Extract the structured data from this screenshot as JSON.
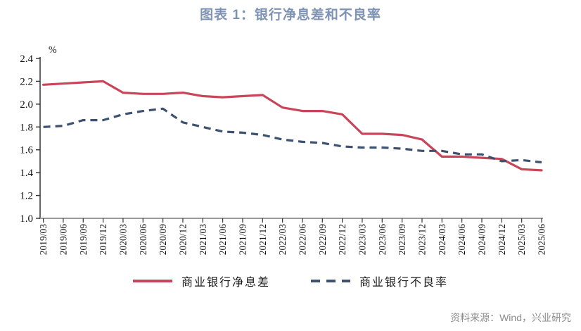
{
  "title": "图表 1：银行净息差和不良率",
  "footer": {
    "source_label": "资料来源：Wind，兴业研究"
  },
  "colors": {
    "title": "#7e93b4",
    "nim_line": "#c9455a",
    "npl_line": "#3c5270",
    "axis_line": "#9a9a9a",
    "tick": "#333333",
    "source_text": "#8c8c8c"
  },
  "legend": {
    "items": [
      {
        "label": "商业银行净息差",
        "style": "solid",
        "color": "#c9455a"
      },
      {
        "label": "商业银行不良率",
        "style": "dashed",
        "color": "#3c5270"
      }
    ]
  },
  "chart_data": {
    "type": "line",
    "title": "图表 1：银行净息差和不良率",
    "ylabel": "%",
    "xlabel": "",
    "ylim": [
      1.0,
      2.4
    ],
    "ytick_step": 0.2,
    "grid": false,
    "legend_position": "bottom",
    "x": [
      "2019/03",
      "2019/06",
      "2019/09",
      "2019/12",
      "2020/03",
      "2020/06",
      "2020/09",
      "2020/12",
      "2021/03",
      "2021/06",
      "2021/09",
      "2021/12",
      "2022/03",
      "2022/06",
      "2022/09",
      "2022/12",
      "2023/03",
      "2023/06",
      "2023/09",
      "2023/12",
      "2024/03",
      "2024/06",
      "2024/09",
      "2024/12",
      "2025/03",
      "2025/06"
    ],
    "series": [
      {
        "name": "商业银行净息差",
        "style": "solid",
        "color": "#c9455a",
        "values": [
          2.17,
          2.18,
          2.19,
          2.2,
          2.1,
          2.09,
          2.09,
          2.1,
          2.07,
          2.06,
          2.07,
          2.08,
          1.97,
          1.94,
          1.94,
          1.91,
          1.74,
          1.74,
          1.73,
          1.69,
          1.54,
          1.54,
          1.53,
          1.52,
          1.43,
          1.42
        ]
      },
      {
        "name": "商业银行不良率",
        "style": "dashed",
        "color": "#3c5270",
        "values": [
          1.8,
          1.81,
          1.86,
          1.86,
          1.91,
          1.94,
          1.96,
          1.84,
          1.8,
          1.76,
          1.75,
          1.73,
          1.69,
          1.67,
          1.66,
          1.63,
          1.62,
          1.62,
          1.61,
          1.59,
          1.59,
          1.56,
          1.56,
          1.5,
          1.51,
          1.49
        ]
      }
    ]
  }
}
